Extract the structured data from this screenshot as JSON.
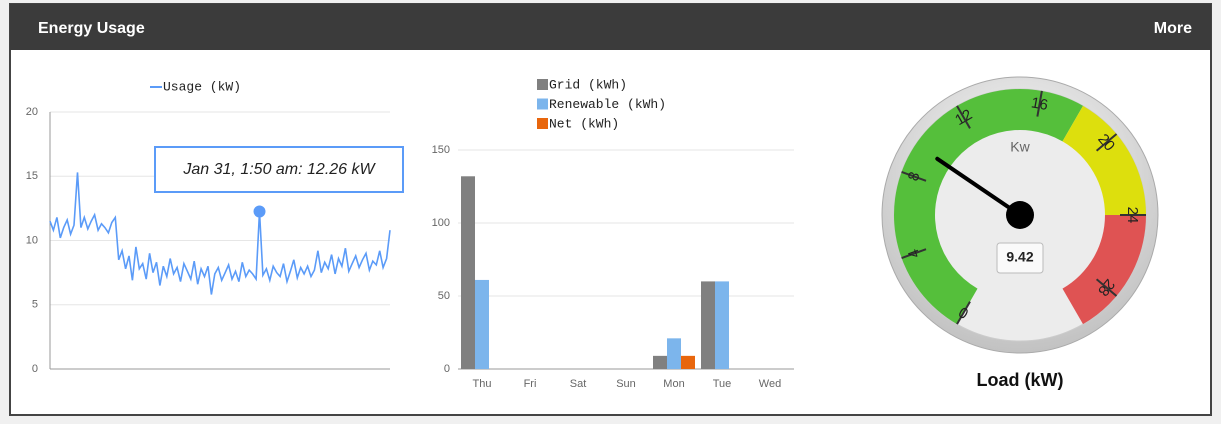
{
  "header": {
    "title": "Energy Usage",
    "link": "More"
  },
  "chart_data": [
    {
      "type": "line",
      "legend_position": "top",
      "series": [
        {
          "name": "Usage (kW)",
          "color": "#5b9bf8",
          "values": [
            11.5,
            10.8,
            11.8,
            10.2,
            11.0,
            11.6,
            10.5,
            11.2,
            15.3,
            11.0,
            11.8,
            10.9,
            11.5,
            12.0,
            10.8,
            11.3,
            11.0,
            10.6,
            11.4,
            11.8,
            8.5,
            9.2,
            7.8,
            8.8,
            6.9,
            9.5,
            7.8,
            8.2,
            7.0,
            9.0,
            7.5,
            8.3,
            6.5,
            8.0,
            7.2,
            8.6,
            7.4,
            7.9,
            6.8,
            8.2,
            7.6,
            7.0,
            8.4,
            6.6,
            7.8,
            7.2,
            8.0,
            5.8,
            7.4,
            7.9,
            6.9,
            7.5,
            8.1,
            7.0,
            7.6,
            6.8,
            8.3,
            7.2,
            7.7,
            7.4,
            7.0,
            12.26,
            7.3,
            7.8,
            6.9,
            8.0,
            7.5,
            7.2,
            8.2,
            6.8,
            7.6,
            8.5,
            7.1,
            7.9,
            7.4,
            8.0,
            7.2,
            7.7,
            9.2,
            7.5,
            8.3,
            7.8,
            8.9,
            7.4,
            8.6,
            8.0,
            9.4,
            7.6,
            8.2,
            8.8,
            7.9,
            8.5,
            9.0,
            7.7,
            8.4,
            8.1,
            9.2,
            7.9,
            8.6,
            10.8
          ]
        }
      ],
      "tooltip": "Jan 31, 1:50 am: 12.26 kW",
      "ylim": [
        0,
        20
      ],
      "yticks": [
        0,
        5,
        10,
        15,
        20
      ],
      "grid": true
    },
    {
      "type": "bar",
      "legend_position": "top",
      "categories": [
        "Thu",
        "Fri",
        "Sat",
        "Sun",
        "Mon",
        "Tue",
        "Wed"
      ],
      "series": [
        {
          "name": "Grid (kWh)",
          "color": "#808080",
          "values": [
            132,
            0,
            0,
            0,
            9,
            60,
            0
          ]
        },
        {
          "name": "Renewable (kWh)",
          "color": "#7cb5ec",
          "values": [
            61,
            0,
            0,
            0,
            21,
            60,
            0
          ]
        },
        {
          "name": "Net (kWh)",
          "color": "#e8660d",
          "values": [
            0,
            0,
            0,
            0,
            9,
            0,
            0
          ]
        }
      ],
      "ylim": [
        0,
        150
      ],
      "yticks": [
        0,
        50,
        100,
        150
      ],
      "grid": true
    },
    {
      "type": "gauge",
      "title": "Load (kW)",
      "unit": "Kw",
      "value": 9.42,
      "ylim": [
        0,
        30
      ],
      "yticks": [
        0,
        4,
        8,
        12,
        16,
        20,
        24,
        28
      ],
      "bands": [
        {
          "from": 0,
          "to": 18,
          "color": "#55bf3b"
        },
        {
          "from": 18,
          "to": 24,
          "color": "#dddf0d"
        },
        {
          "from": 24,
          "to": 30,
          "color": "#df5353"
        }
      ]
    }
  ]
}
